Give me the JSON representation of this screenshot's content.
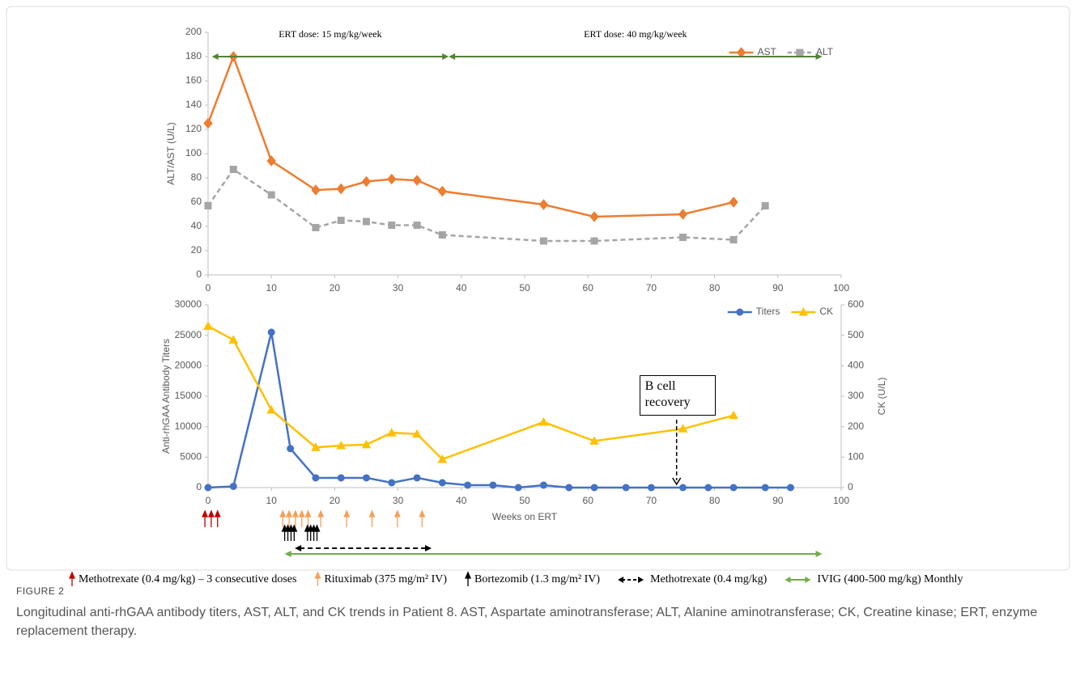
{
  "chart_data": [
    {
      "type": "line",
      "ylabel": "ALT/AST  (U/L)",
      "xlim": [
        0,
        100
      ],
      "xticks": [
        0,
        10,
        20,
        30,
        40,
        50,
        60,
        70,
        80,
        90,
        100
      ],
      "ylim": [
        0,
        200
      ],
      "yticks": [
        0,
        20,
        40,
        60,
        80,
        100,
        120,
        140,
        160,
        180,
        200
      ],
      "legend": "top-right",
      "series": [
        {
          "name": "AST",
          "color": "#ed7d31",
          "marker": "diamond",
          "dashed": false,
          "x": [
            0,
            4,
            10,
            17,
            21,
            25,
            29,
            33,
            37,
            53,
            61,
            75,
            83
          ],
          "values": [
            125,
            180,
            94,
            70,
            71,
            77,
            79,
            78,
            69,
            58,
            48,
            50,
            60
          ]
        },
        {
          "name": "ALT",
          "color": "#a5a5a5",
          "marker": "square",
          "dashed": true,
          "x": [
            0,
            4,
            10,
            17,
            21,
            25,
            29,
            33,
            37,
            53,
            61,
            75,
            83,
            88
          ],
          "values": [
            57,
            87,
            66,
            39,
            45,
            44,
            41,
            41,
            33,
            28,
            28,
            31,
            29,
            57
          ]
        }
      ],
      "spans": [
        {
          "text": "ERT dose: 15 mg/kg/week",
          "color": "#548235",
          "span": [
            0.6,
            38
          ]
        },
        {
          "text": "ERT dose: 40 mg/kg/week",
          "color": "#548235",
          "span": [
            38,
            97
          ]
        }
      ]
    },
    {
      "type": "line",
      "xlabel": "Weeks on ERT",
      "ylabel": "Anti-rhGAA Antibody Titers",
      "y2label": "CK (U/L)",
      "xlim": [
        0,
        100
      ],
      "xticks": [
        0,
        10,
        20,
        30,
        40,
        50,
        60,
        70,
        80,
        90,
        100
      ],
      "ylim": [
        0,
        30000
      ],
      "yticks": [
        0,
        5000,
        10000,
        15000,
        20000,
        25000,
        30000
      ],
      "y2lim": [
        0,
        600
      ],
      "y2ticks": [
        0,
        100,
        200,
        300,
        400,
        500,
        600
      ],
      "legend": "top-right",
      "series": [
        {
          "name": "Titers",
          "color": "#4472c4",
          "marker": "circle",
          "dashed": false,
          "x": [
            0,
            4,
            10,
            13,
            17,
            21,
            25,
            29,
            33,
            37,
            41,
            45,
            49,
            53,
            57,
            61,
            66,
            70,
            75,
            79,
            83,
            88,
            92
          ],
          "values": [
            0,
            200,
            25500,
            6400,
            1600,
            1600,
            1600,
            800,
            1600,
            800,
            400,
            400,
            0,
            400,
            0,
            0,
            0,
            0,
            0,
            0,
            0,
            0,
            0
          ]
        },
        {
          "name": "CK",
          "color": "#ffc000",
          "marker": "triangle",
          "dashed": false,
          "axis": "y2",
          "x": [
            0,
            4,
            10,
            17,
            21,
            25,
            29,
            33,
            37,
            53,
            61,
            75,
            83
          ],
          "values": [
            530,
            485,
            255,
            132,
            138,
            141,
            180,
            176,
            93,
            215,
            153,
            193,
            237
          ]
        }
      ],
      "annotation": {
        "text": "B cell recovery",
        "x": 74
      },
      "treatments": [
        {
          "name": "Methotrexate (0.4 mg/kg) – 3 consecutive doses",
          "color": "#c00000",
          "x": [
            -0.5,
            0.5,
            1.5
          ]
        },
        {
          "name": "Rituximab (375 mg/m² IV)",
          "color": "#f4a05a",
          "x": [
            11.8,
            12.8,
            13.8,
            14.8,
            15.8,
            17.8,
            21.9,
            25.9,
            29.9,
            33.8
          ]
        },
        {
          "name": "Bortezomib (1.3 mg/m² IV)",
          "color": "#000000",
          "x": [
            12.1,
            12.6,
            13.1,
            13.6,
            15.7,
            16.2,
            16.7,
            17.2
          ]
        },
        {
          "name": "Methotrexate (0.4 mg/kg)",
          "color": "#000000",
          "dashed": true,
          "span": [
            13.7,
            35.3
          ]
        },
        {
          "name": "IVIG (400-500 mg/kg) Monthly",
          "color": "#70ad47",
          "dashed": false,
          "span": [
            12.1,
            97
          ]
        }
      ]
    }
  ],
  "caption": {
    "label": "FIGURE 2",
    "text": "Longitudinal anti-rhGAA antibody titers, AST, ALT, and CK trends in Patient 8. AST, Aspartate aminotransferase; ALT, Alanine aminotransferase; CK, Creatine kinase; ERT, enzyme replacement therapy."
  }
}
